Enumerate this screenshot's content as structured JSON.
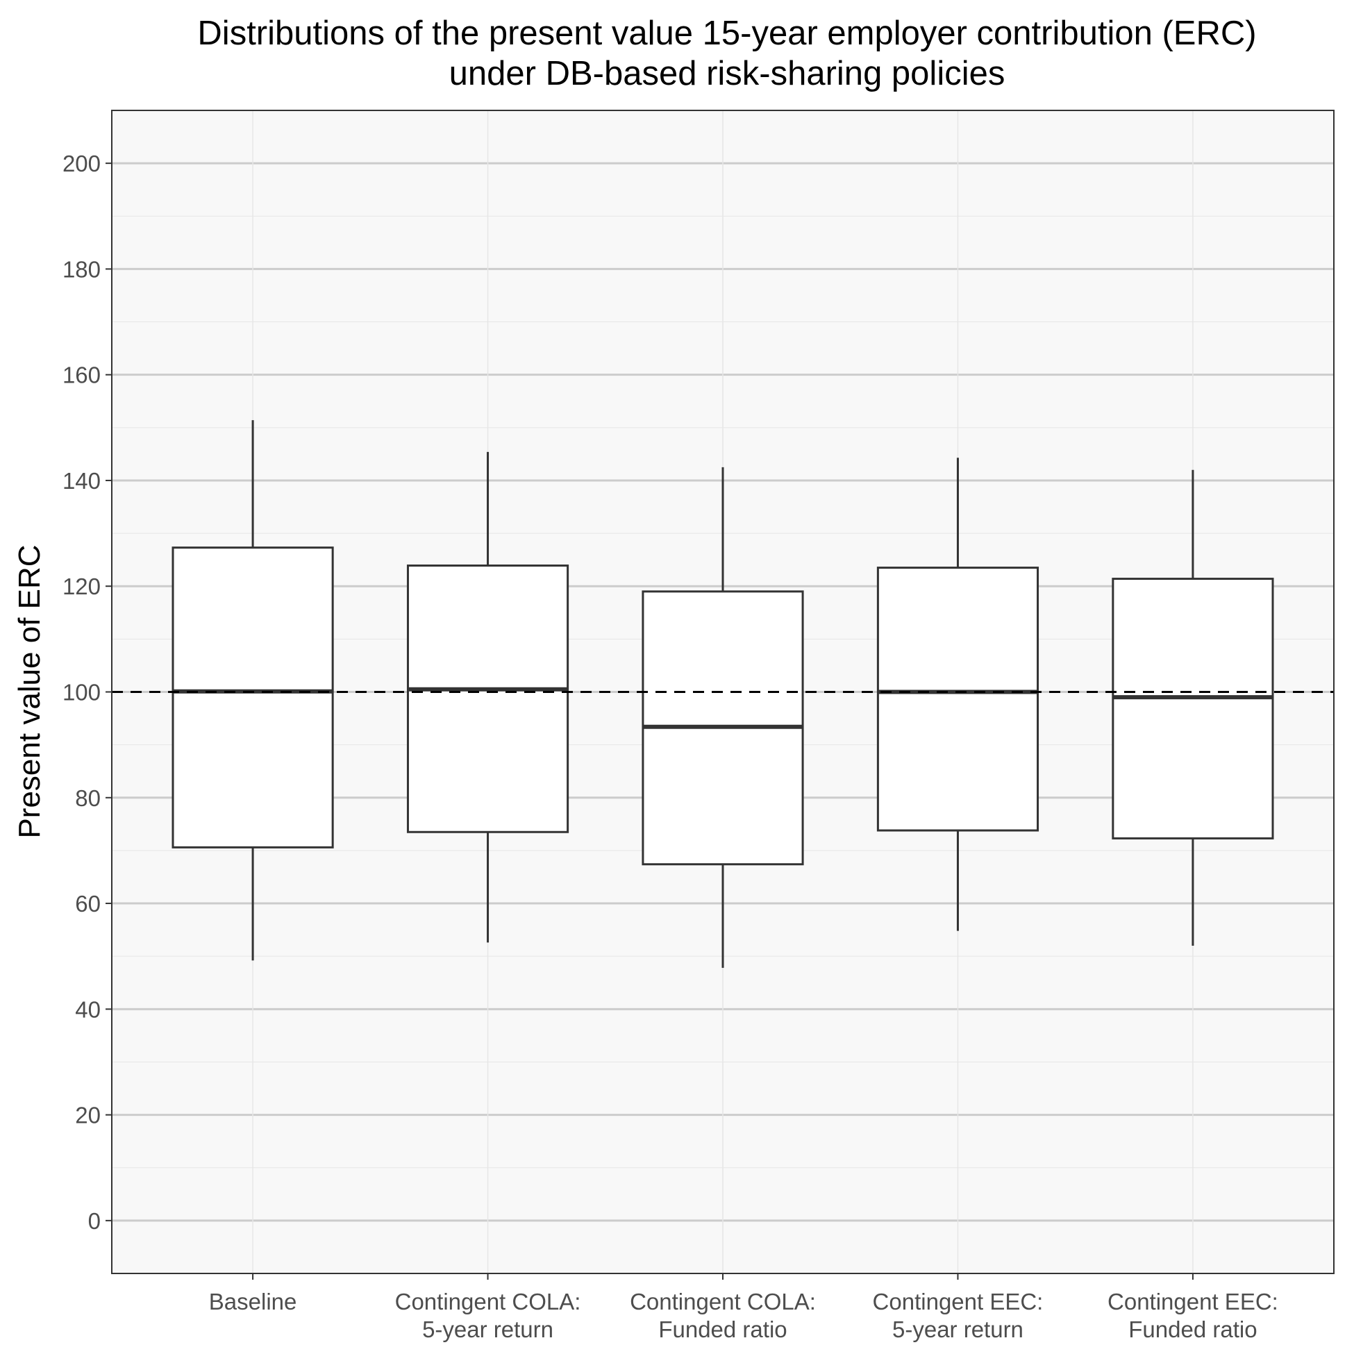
{
  "chart_data": {
    "type": "boxplot",
    "title": [
      "Distributions of the present value 15-year employer contribution (ERC)",
      "under DB-based risk-sharing policies"
    ],
    "ylabel": "Present value of ERC",
    "xlabel": "",
    "ylim": [
      -10,
      210
    ],
    "y_ticks": [
      0,
      20,
      40,
      60,
      80,
      100,
      120,
      140,
      160,
      180,
      200
    ],
    "categories": [
      [
        "Baseline"
      ],
      [
        "Contingent COLA:",
        "5-year return"
      ],
      [
        "Contingent COLA:",
        "Funded ratio"
      ],
      [
        "Contingent EEC:",
        "5-year return"
      ],
      [
        "Contingent EEC:",
        "Funded ratio"
      ]
    ],
    "boxes": [
      {
        "whisker_low": 49.2,
        "q1": 70.6,
        "median": 100.1,
        "q3": 127.3,
        "whisker_high": 151.4
      },
      {
        "whisker_low": 52.6,
        "q1": 73.5,
        "median": 100.5,
        "q3": 123.9,
        "whisker_high": 145.4
      },
      {
        "whisker_low": 47.8,
        "q1": 67.4,
        "median": 93.4,
        "q3": 119.0,
        "whisker_high": 142.5
      },
      {
        "whisker_low": 54.8,
        "q1": 73.8,
        "median": 100.0,
        "q3": 123.5,
        "whisker_high": 144.3
      },
      {
        "whisker_low": 52.0,
        "q1": 72.3,
        "median": 99.0,
        "q3": 121.4,
        "whisker_high": 142.0
      }
    ],
    "reference_line": 100,
    "grid": true,
    "colors": {
      "panel_background": "#f8f8f8",
      "grid_major": "#cccccc",
      "grid_minor": "#e6e6e6",
      "box_fill": "#ffffff",
      "box_stroke": "#333333",
      "reference_line": "#000000"
    }
  }
}
